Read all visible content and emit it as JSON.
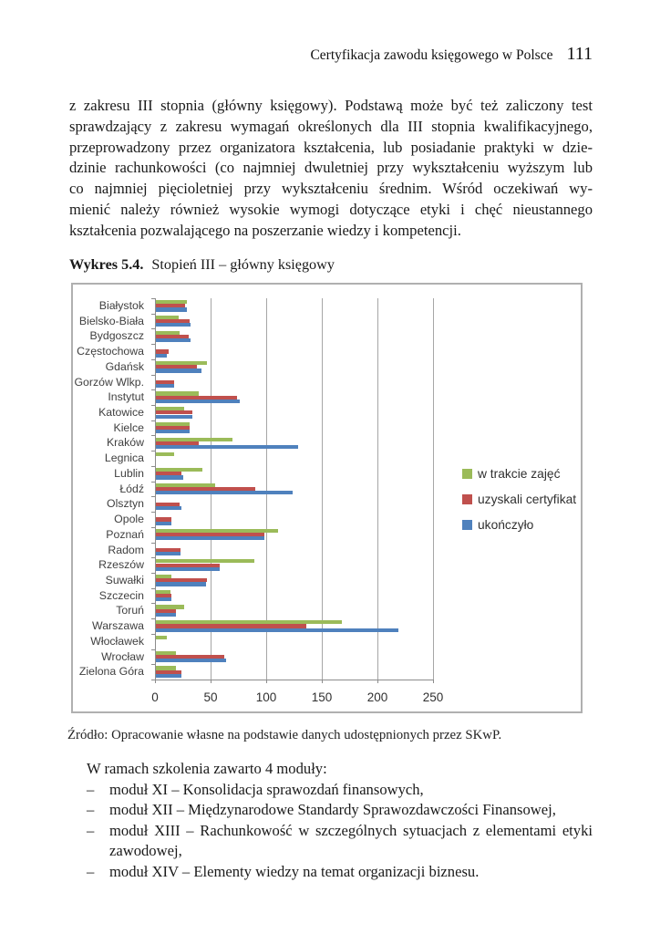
{
  "page": {
    "header": {
      "running_title": "Certyfikacja zawodu księgowego w Polsce",
      "page_number": "111"
    },
    "paragraph_lines": [
      "z zakresu III stopnia (główny księgowy). Podstawą może być też zaliczony test",
      "sprawdzający z zakresu wymagań określonych dla III stopnia kwalifikacyjnego,",
      "przeprowadzony przez organizatora kształcenia, lub posiadanie praktyki w dzie-",
      "dzinie rachunkowości (co najmniej dwuletniej przy wykształceniu wyższym lub",
      "co najmniej pięcioletniej przy wykształceniu średnim. Wśród oczekiwań wy-",
      "mienić należy również wysokie wymogi dotyczące etyki i chęć nieustannego",
      "kształcenia pozwalającego na poszerzanie wiedzy i kompetencji."
    ],
    "figure_caption": {
      "label": "Wykres 5.4.",
      "title": "Stopień III – główny księgowy"
    },
    "source": "Źródło: Opracowanie własne na podstawie danych udostępnionych przez SKwP.",
    "modules": {
      "intro": "W ramach szkolenia zawarto 4 moduły:",
      "bullet": "–",
      "items": [
        "moduł XI – Konsolidacja sprawozdań finansowych,",
        "moduł XII – Międzynarodowe Standardy Sprawozdawczości Finansowej,",
        "moduł XIII – Rachunkowość w szczególnych sytuacjach z elementami etyki zawodowej,",
        "moduł XIV – Elementy wiedzy na temat organizacji biznesu."
      ]
    }
  },
  "chart_data": {
    "type": "bar",
    "orientation": "horizontal",
    "title": "Stopień III – główny księgowy",
    "xlabel": "",
    "ylabel": "",
    "xlim": [
      0,
      250
    ],
    "xticks": [
      0,
      50,
      100,
      150,
      200,
      250
    ],
    "grid": "vertical",
    "legend_position": "right",
    "categories": [
      "Białystok",
      "Bielsko-Biała",
      "Bydgoszcz",
      "Częstochowa",
      "Gdańsk",
      "Gorzów Wlkp.",
      "Instytut",
      "Katowice",
      "Kielce",
      "Kraków",
      "Legnica",
      "Lublin",
      "Łódź",
      "Olsztyn",
      "Opole",
      "Poznań",
      "Radom",
      "Rzeszów",
      "Suwałki",
      "Szczecin",
      "Toruń",
      "Warszawa",
      "Włocławek",
      "Wrocław",
      "Zielona Góra"
    ],
    "series": [
      {
        "name": "w trakcie zajęć",
        "color": "#9BBB59",
        "values": [
          29,
          21,
          22,
          0,
          47,
          0,
          39,
          26,
          31,
          70,
          17,
          43,
          54,
          0,
          0,
          111,
          0,
          89,
          15,
          14,
          26,
          168,
          11,
          19,
          19
        ]
      },
      {
        "name": "uzyskali certyfikat",
        "color": "#C0504D",
        "values": [
          27,
          31,
          30,
          12,
          38,
          17,
          74,
          34,
          31,
          39,
          0,
          24,
          90,
          22,
          15,
          98,
          23,
          58,
          47,
          15,
          19,
          136,
          0,
          62,
          24
        ]
      },
      {
        "name": "ukończyło",
        "color": "#4F81BD",
        "values": [
          29,
          32,
          32,
          11,
          42,
          17,
          76,
          34,
          31,
          129,
          0,
          25,
          124,
          24,
          15,
          98,
          23,
          58,
          46,
          15,
          19,
          219,
          0,
          64,
          24
        ]
      }
    ]
  }
}
